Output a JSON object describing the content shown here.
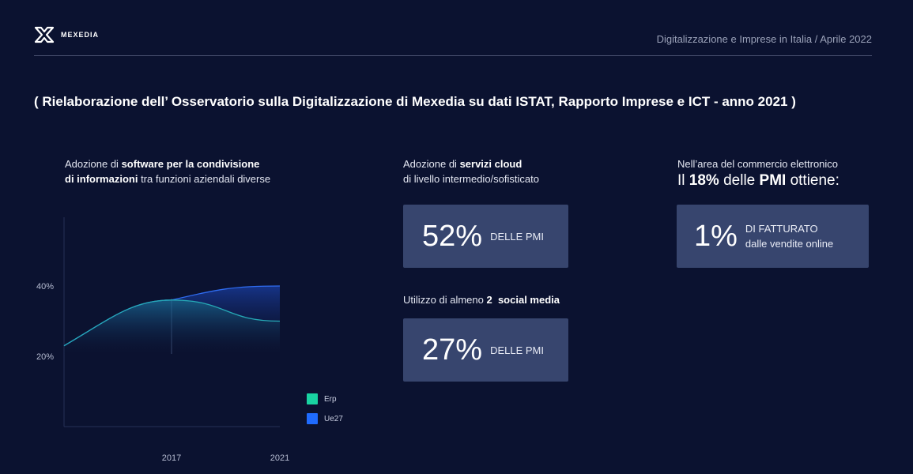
{
  "header": {
    "brand": "MEXEDIA",
    "right_title": "Digitalizzazione e Imprese in Italia / Aprile 2022"
  },
  "subtitle": "( Rielaborazione dell’ Osservatorio sulla Digitalizzazione di Mexedia su dati ISTAT, Rapporto Imprese e ICT - anno 2021 )",
  "col1": {
    "pre": "Adozione di ",
    "bold": "software per la condivisione di informazioni",
    "post": " tra funzioni aziendali diverse"
  },
  "col2": {
    "pre": "Adozione di ",
    "bold": "servizi cloud",
    "line2": "di livello intermedio/sofisticato",
    "box1_value": "52%",
    "box1_caption": "DELLE PMI",
    "social_pre": "Utilizzo di almeno ",
    "social_bold": "2  social media",
    "box2_value": "27%",
    "box2_caption": "DELLE PMI"
  },
  "col3": {
    "line1": "Nell’area del commercio elettronico",
    "big_pre": "Il ",
    "big_b1": "18%",
    "big_mid": " delle ",
    "big_b2": "PMI",
    "big_post": " ottiene:",
    "box_value": "1%",
    "box_cap1": "DI FATTURATO",
    "box_cap2": "dalle vendite online"
  },
  "chart_data": {
    "type": "area",
    "x": [
      "2013",
      "2017",
      "2021"
    ],
    "x_ticks": [
      "2017",
      "2021"
    ],
    "y_ticks": [
      "20%",
      "40%"
    ],
    "ylim": [
      0,
      60
    ],
    "series": [
      {
        "name": "Erp",
        "color": "#19d3a2",
        "values": [
          23,
          36,
          30
        ]
      },
      {
        "name": "Ue27",
        "color": "#1f6bff",
        "values": [
          23,
          36,
          40
        ]
      }
    ],
    "legend": "right"
  }
}
